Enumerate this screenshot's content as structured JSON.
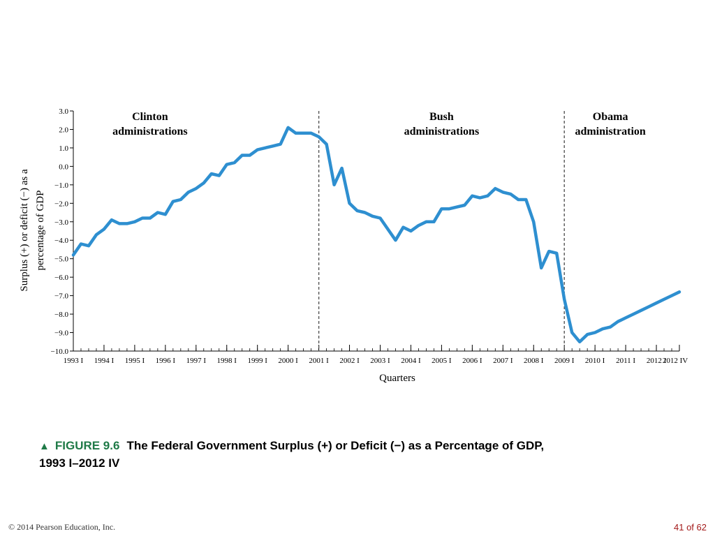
{
  "chart_data": {
    "type": "line",
    "xlabel": "Quarters",
    "ylabel": "Surplus (+) or deficit (−) as a percentage of GDP",
    "ylim": [
      -10.0,
      3.0
    ],
    "yticks": [
      "3.0",
      "2.0",
      "1.0",
      "0.0",
      "−1.0",
      "−2.0",
      "−3.0",
      "−4.0",
      "−5.0",
      "−6.0",
      "−7.0",
      "−8.0",
      "−9.0",
      "−10.0"
    ],
    "x_tick_labels": [
      "1993 I",
      "1994 I",
      "1995 I",
      "1996 I",
      "1997 I",
      "1998 I",
      "1999 I",
      "2000 I",
      "2001 I",
      "2002 I",
      "2003 I",
      "2004 I",
      "2005 I",
      "2006 I",
      "2007 I",
      "2008 I",
      "2009 I",
      "2010 I",
      "2011 I",
      "2012 I",
      "2012 IV"
    ],
    "x_start": "1993 I",
    "x_end": "2012 IV",
    "grid": false,
    "annotations": [
      {
        "lines": [
          "Clinton",
          "administrations"
        ],
        "x_quarter": "1995 III"
      },
      {
        "lines": [
          "Bush",
          "administrations"
        ],
        "x_quarter": "2005 I"
      },
      {
        "lines": [
          "Obama",
          "administration"
        ],
        "x_quarter": "2010 III"
      }
    ],
    "dividers": [
      "2001 I",
      "2009 I"
    ],
    "line_color": "#2e8fd0",
    "series": [
      {
        "values": [
          -4.8,
          -4.2,
          -4.3,
          -3.7,
          -3.4,
          -2.9,
          -3.1,
          -3.1,
          -3.0,
          -2.8,
          -2.8,
          -2.5,
          -2.6,
          -1.9,
          -1.8,
          -1.4,
          -1.2,
          -0.9,
          -0.4,
          -0.5,
          0.1,
          0.2,
          0.6,
          0.6,
          0.9,
          1.0,
          1.1,
          1.2,
          2.1,
          1.8,
          1.8,
          1.8,
          1.6,
          1.2,
          -1.0,
          -0.1,
          -2.0,
          -2.4,
          -2.5,
          -2.7,
          -2.8,
          -3.4,
          -4.0,
          -3.3,
          -3.5,
          -3.2,
          -3.0,
          -3.0,
          -2.3,
          -2.3,
          -2.2,
          -2.1,
          -1.6,
          -1.7,
          -1.6,
          -1.2,
          -1.4,
          -1.5,
          -1.8,
          -1.8,
          -3.0,
          -5.5,
          -4.6,
          -4.7,
          -7.2,
          -9.0,
          -9.5,
          -9.1,
          -9.0,
          -8.8,
          -8.7,
          -8.4,
          -8.2,
          -8.0,
          -7.8,
          -7.6,
          -7.4,
          -7.2,
          -7.0,
          -6.8
        ]
      }
    ]
  },
  "caption": {
    "figure_label": "FIGURE 9.6",
    "line1": "The Federal Government Surplus (+) or Deficit (−) as a Percentage of GDP,",
    "line2": "1993 I–2012 IV"
  },
  "footer": {
    "copyright": "© 2014 Pearson Education, Inc.",
    "page": "41 of 62"
  }
}
